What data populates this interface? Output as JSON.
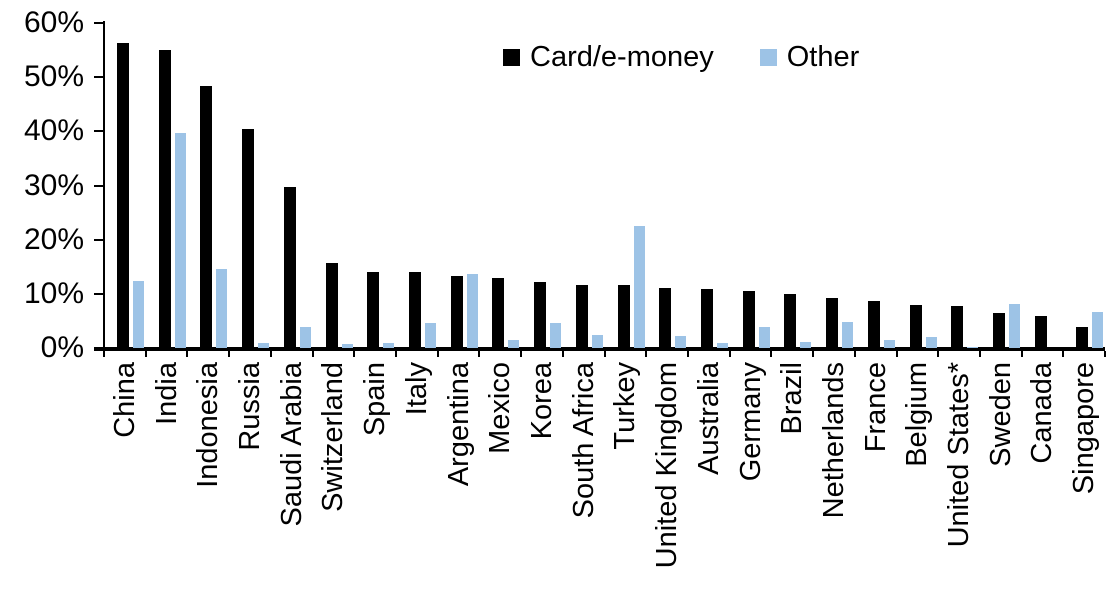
{
  "chart_data": {
    "type": "bar",
    "title": "",
    "xlabel": "",
    "ylabel": "",
    "grid": false,
    "legend_position": "top-center",
    "ylim": [
      0,
      60
    ],
    "ytick_values": [
      0,
      10,
      20,
      30,
      40,
      50,
      60
    ],
    "yticks": [
      "0%",
      "10%",
      "20%",
      "30%",
      "40%",
      "50%",
      "60%"
    ],
    "categories": [
      "China",
      "India",
      "Indonesia",
      "Russia",
      "Saudi Arabia",
      "Switzerland",
      "Spain",
      "Italy",
      "Argentina",
      "Mexico",
      "Korea",
      "South Africa",
      "Turkey",
      "United Kingdom",
      "Australia",
      "Germany",
      "Brazil",
      "Netherlands",
      "France",
      "Belgium",
      "United States*",
      "Sweden",
      "Canada",
      "Singapore"
    ],
    "series": [
      {
        "name": "Card/e-money",
        "color": "#000000",
        "values": [
          56.3,
          55.0,
          48.4,
          40.5,
          29.8,
          15.6,
          14.1,
          14.0,
          13.3,
          12.9,
          12.2,
          11.7,
          11.6,
          11.1,
          10.8,
          10.5,
          9.9,
          9.3,
          8.6,
          8.0,
          7.8,
          6.5,
          5.9,
          3.8
        ]
      },
      {
        "name": "Other",
        "color": "#9DC3E6",
        "values": [
          12.3,
          39.7,
          14.6,
          1.0,
          3.9,
          0.8,
          1.0,
          4.6,
          13.7,
          1.4,
          4.7,
          2.4,
          22.5,
          2.2,
          1.0,
          3.9,
          1.1,
          4.8,
          1.5,
          2.0,
          0.2,
          8.2,
          0.0,
          6.6
        ]
      }
    ]
  }
}
